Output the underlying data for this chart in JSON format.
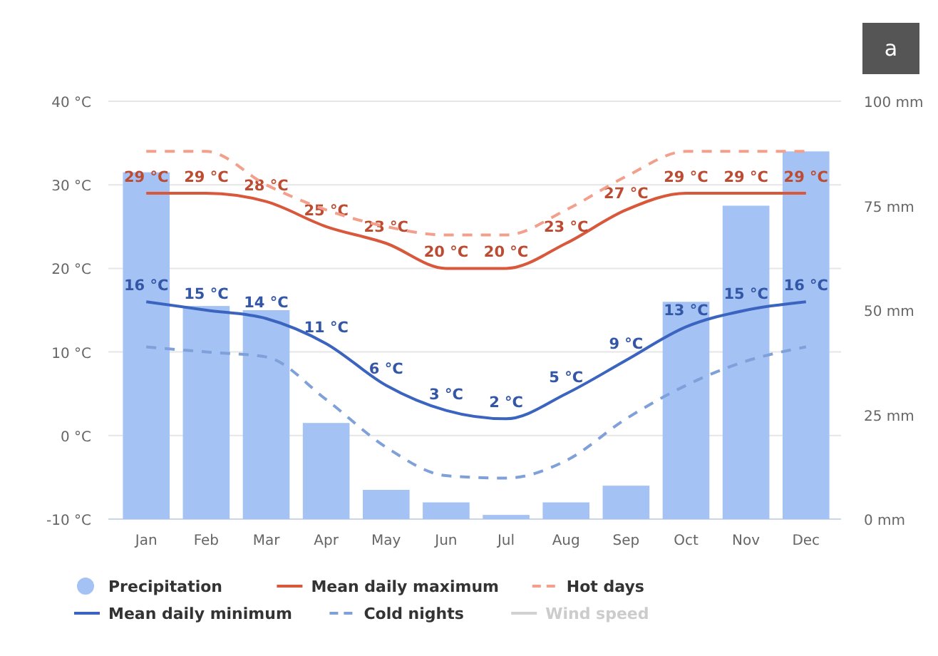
{
  "chart_data": {
    "type": "bar",
    "categories": [
      "Jan",
      "Feb",
      "Mar",
      "Apr",
      "May",
      "Jun",
      "Jul",
      "Aug",
      "Sep",
      "Oct",
      "Nov",
      "Dec"
    ],
    "series": [
      {
        "name": "Precipitation",
        "axis": "y2",
        "color": "#a4c2f4",
        "values": [
          83,
          51,
          50,
          23,
          7,
          4,
          1,
          4,
          8,
          52,
          75,
          88
        ]
      },
      {
        "name": "Mean daily maximum",
        "type": "line",
        "color": "#d9573a",
        "line_style": "solid",
        "values": [
          29,
          29,
          28,
          25,
          23,
          20,
          20,
          23,
          27,
          29,
          29,
          29
        ],
        "value_labels": [
          "29 °C",
          "29 °C",
          "28 °C",
          "25 °C",
          "23 °C",
          "20 °C",
          "20 °C",
          "23 °C",
          "27 °C",
          "29 °C",
          "29 °C",
          "29 °C"
        ]
      },
      {
        "name": "Hot days",
        "type": "line",
        "color": "#f2a08c",
        "line_style": "dashed",
        "values": [
          34,
          34,
          30,
          27,
          25,
          24,
          24,
          27,
          31,
          34,
          34,
          34
        ]
      },
      {
        "name": "Mean daily minimum",
        "type": "line",
        "color": "#3b64c0",
        "line_style": "solid",
        "values": [
          16,
          15,
          14,
          11,
          6,
          3,
          2,
          5,
          9,
          13,
          15,
          16
        ],
        "value_labels": [
          "16 °C",
          "15 °C",
          "14 °C",
          "11 °C",
          "6 °C",
          "3 °C",
          "2 °C",
          "5 °C",
          "9 °C",
          "13 °C",
          "15 °C",
          "16 °C"
        ]
      },
      {
        "name": "Cold nights",
        "type": "line",
        "color": "#7fa0d8",
        "line_style": "dashed",
        "values": [
          10.6,
          10,
          9.4,
          4.3,
          -1.4,
          -4.8,
          -5.1,
          -3,
          2,
          6,
          8.9,
          10.6
        ]
      },
      {
        "name": "Wind speed",
        "type": "line",
        "color": "#d0d0d0",
        "line_style": "solid",
        "values": [
          null,
          null,
          null,
          null,
          null,
          null,
          null,
          null,
          null,
          null,
          null,
          null
        ]
      }
    ],
    "ylim": [
      -10,
      40
    ],
    "yticks": [
      {
        "value": -10,
        "label": "-10 °C"
      },
      {
        "value": 0,
        "label": "0 °C"
      },
      {
        "value": 10,
        "label": "10 °C"
      },
      {
        "value": 20,
        "label": "20 °C"
      },
      {
        "value": 30,
        "label": "30 °C"
      },
      {
        "value": 40,
        "label": "40 °C"
      }
    ],
    "y2lim": [
      0,
      100
    ],
    "y2ticks": [
      {
        "value": 0,
        "label": "0 mm"
      },
      {
        "value": 25,
        "label": "25 mm"
      },
      {
        "value": 50,
        "label": "50 mm"
      },
      {
        "value": 75,
        "label": "75 mm"
      },
      {
        "value": 100,
        "label": "100 mm"
      }
    ],
    "grid": "y",
    "legend": "bottom",
    "marker": "none",
    "annotations": [
      "a"
    ]
  }
}
